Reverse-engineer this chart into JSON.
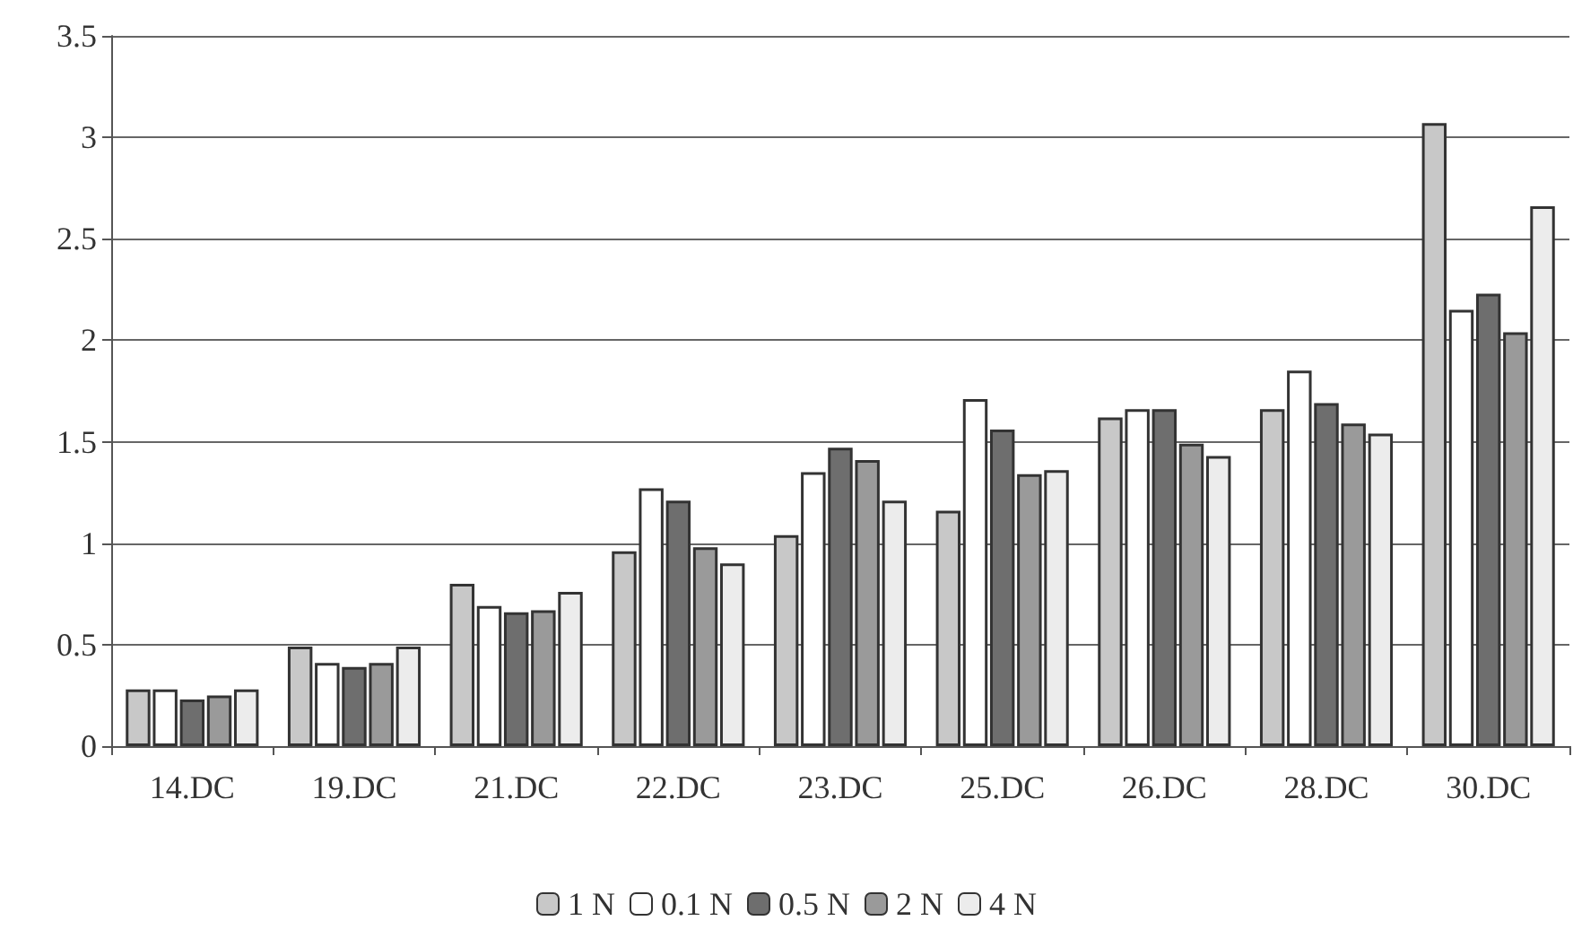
{
  "chart_data": {
    "type": "bar",
    "categories": [
      "14.DC",
      "19.DC",
      "21.DC",
      "22.DC",
      "23.DC",
      "25.DC",
      "26.DC",
      "28.DC",
      "30.DC"
    ],
    "series": [
      {
        "name": "1 N",
        "color": "#c8c8c8",
        "values": [
          0.28,
          0.49,
          0.8,
          0.96,
          1.04,
          1.16,
          1.62,
          1.66,
          3.07
        ]
      },
      {
        "name": "0.1 N",
        "color": "#ffffff",
        "values": [
          0.28,
          0.41,
          0.69,
          1.27,
          1.35,
          1.71,
          1.66,
          1.85,
          2.15
        ]
      },
      {
        "name": "0.5 N",
        "color": "#6e6e6e",
        "values": [
          0.23,
          0.39,
          0.66,
          1.21,
          1.47,
          1.56,
          1.66,
          1.69,
          2.23
        ]
      },
      {
        "name": "2 N",
        "color": "#9a9a9a",
        "values": [
          0.25,
          0.41,
          0.67,
          0.98,
          1.41,
          1.34,
          1.49,
          1.59,
          2.04
        ]
      },
      {
        "name": "4 N",
        "color": "#ececec",
        "values": [
          0.28,
          0.49,
          0.76,
          0.9,
          1.21,
          1.36,
          1.43,
          1.54,
          2.66
        ]
      }
    ],
    "ylim": [
      0,
      3.5
    ],
    "yticks": [
      0,
      0.5,
      1,
      1.5,
      2,
      2.5,
      3,
      3.5
    ],
    "grid": "y",
    "legend": "bottom"
  }
}
